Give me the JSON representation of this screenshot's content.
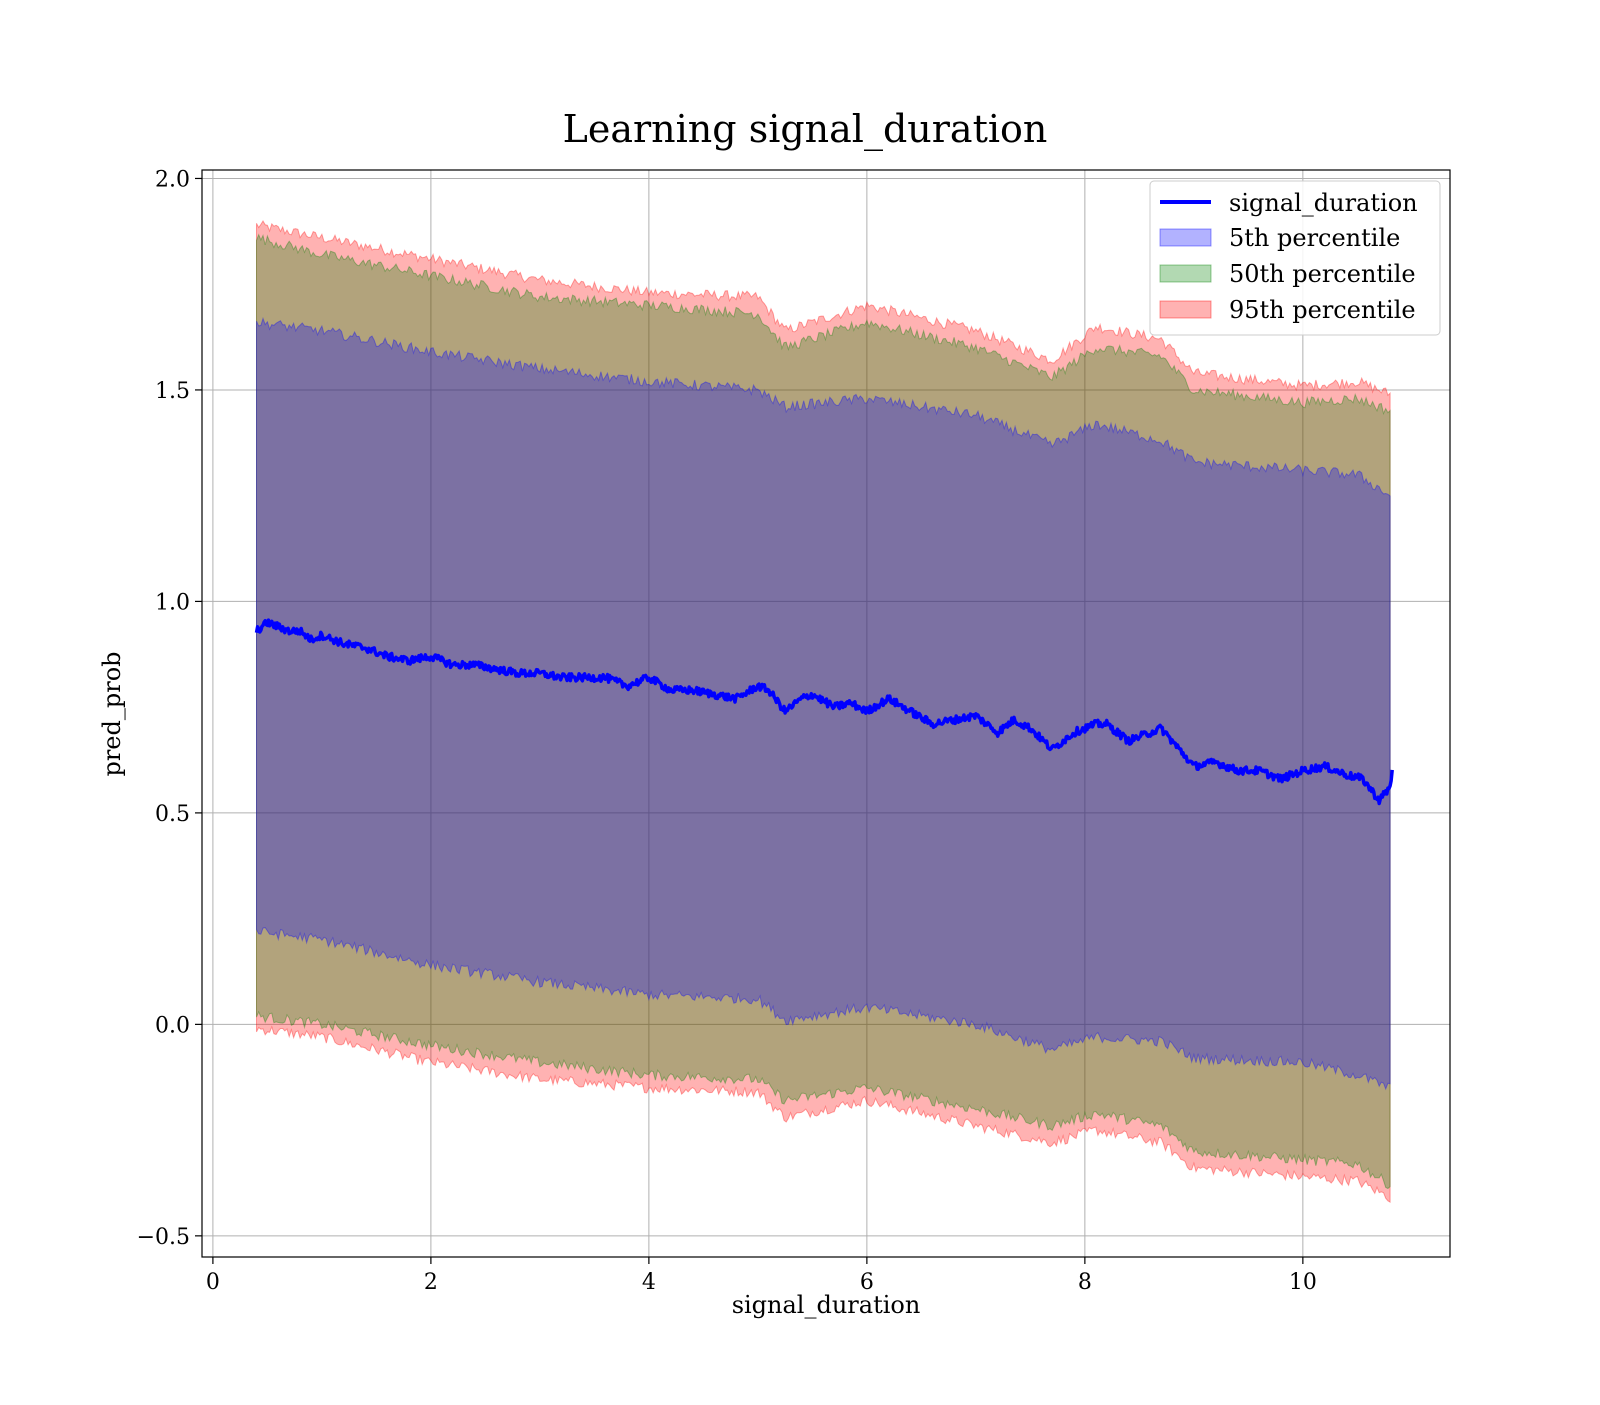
{
  "chart_data": {
    "type": "area",
    "title": "Learning signal_duration",
    "xlabel": "signal_duration",
    "ylabel": "pred_prob",
    "xlim": [
      -0.1,
      11.35
    ],
    "ylim": [
      -0.55,
      2.02
    ],
    "xticks": [
      0,
      2,
      4,
      6,
      8,
      10
    ],
    "xtick_labels": [
      "0",
      "2",
      "4",
      "6",
      "8",
      "10"
    ],
    "yticks": [
      -0.5,
      0.0,
      0.5,
      1.0,
      1.5,
      2.0
    ],
    "ytick_labels": [
      "−0.5",
      "0.0",
      "0.5",
      "1.0",
      "1.5",
      "2.0"
    ],
    "grid": true,
    "legend_position": "top-right",
    "line_series": {
      "name": "signal_duration",
      "color": "#0000ff",
      "x": [
        0.4,
        0.5,
        0.6,
        0.7,
        0.8,
        0.9,
        1.0,
        1.2,
        1.4,
        1.6,
        1.8,
        2.0,
        2.2,
        2.4,
        2.6,
        2.8,
        3.0,
        3.2,
        3.4,
        3.6,
        3.8,
        4.0,
        4.2,
        4.4,
        4.6,
        4.8,
        5.0,
        5.1,
        5.25,
        5.4,
        5.5,
        5.7,
        5.85,
        6.0,
        6.2,
        6.4,
        6.6,
        6.8,
        7.0,
        7.2,
        7.35,
        7.5,
        7.7,
        7.9,
        8.1,
        8.2,
        8.4,
        8.6,
        8.7,
        8.8,
        9.0,
        9.2,
        9.4,
        9.6,
        9.8,
        10.0,
        10.2,
        10.4,
        10.55,
        10.7,
        10.8,
        10.82
      ],
      "y": [
        0.93,
        0.95,
        0.94,
        0.93,
        0.93,
        0.91,
        0.92,
        0.9,
        0.89,
        0.87,
        0.86,
        0.87,
        0.85,
        0.85,
        0.84,
        0.83,
        0.83,
        0.82,
        0.82,
        0.82,
        0.8,
        0.82,
        0.79,
        0.79,
        0.78,
        0.77,
        0.8,
        0.79,
        0.74,
        0.77,
        0.78,
        0.75,
        0.76,
        0.74,
        0.77,
        0.74,
        0.71,
        0.72,
        0.73,
        0.69,
        0.72,
        0.7,
        0.65,
        0.69,
        0.71,
        0.71,
        0.67,
        0.69,
        0.7,
        0.67,
        0.61,
        0.62,
        0.6,
        0.6,
        0.58,
        0.6,
        0.61,
        0.59,
        0.58,
        0.53,
        0.56,
        0.6
      ]
    },
    "bands": [
      {
        "name": "5th percentile",
        "color": "#0000ff",
        "opacity": 0.3,
        "x": [
          0.4,
          1.0,
          2.0,
          3.0,
          4.0,
          5.0,
          5.25,
          6.0,
          7.0,
          7.7,
          8.1,
          8.7,
          9.0,
          10.0,
          10.5,
          10.8
        ],
        "upper": [
          1.66,
          1.64,
          1.59,
          1.55,
          1.52,
          1.5,
          1.46,
          1.48,
          1.44,
          1.37,
          1.42,
          1.38,
          1.33,
          1.31,
          1.3,
          1.25
        ],
        "lower": [
          0.22,
          0.2,
          0.14,
          0.1,
          0.07,
          0.06,
          0.01,
          0.04,
          0.0,
          -0.06,
          -0.03,
          -0.04,
          -0.08,
          -0.09,
          -0.12,
          -0.15
        ]
      },
      {
        "name": "50th percentile",
        "color": "#008000",
        "opacity": 0.3,
        "x": [
          0.4,
          1.0,
          2.0,
          3.0,
          4.0,
          5.0,
          5.25,
          6.0,
          7.0,
          7.7,
          8.1,
          8.7,
          9.0,
          10.0,
          10.5,
          10.8
        ],
        "upper": [
          1.86,
          1.82,
          1.77,
          1.72,
          1.7,
          1.68,
          1.6,
          1.66,
          1.6,
          1.53,
          1.6,
          1.58,
          1.5,
          1.47,
          1.48,
          1.45
        ],
        "lower": [
          0.02,
          0.0,
          -0.05,
          -0.09,
          -0.12,
          -0.13,
          -0.18,
          -0.15,
          -0.2,
          -0.24,
          -0.21,
          -0.24,
          -0.3,
          -0.32,
          -0.33,
          -0.38
        ]
      },
      {
        "name": "95th percentile",
        "color": "#ff0000",
        "opacity": 0.3,
        "x": [
          0.4,
          1.0,
          2.0,
          3.0,
          4.0,
          5.0,
          5.25,
          6.0,
          7.0,
          7.7,
          8.1,
          8.7,
          9.0,
          10.0,
          10.5,
          10.8
        ],
        "upper": [
          1.89,
          1.86,
          1.81,
          1.76,
          1.73,
          1.72,
          1.64,
          1.7,
          1.64,
          1.57,
          1.65,
          1.62,
          1.54,
          1.51,
          1.52,
          1.49
        ],
        "lower": [
          -0.01,
          -0.03,
          -0.09,
          -0.13,
          -0.15,
          -0.16,
          -0.22,
          -0.18,
          -0.24,
          -0.28,
          -0.25,
          -0.28,
          -0.34,
          -0.36,
          -0.37,
          -0.41
        ]
      }
    ]
  }
}
